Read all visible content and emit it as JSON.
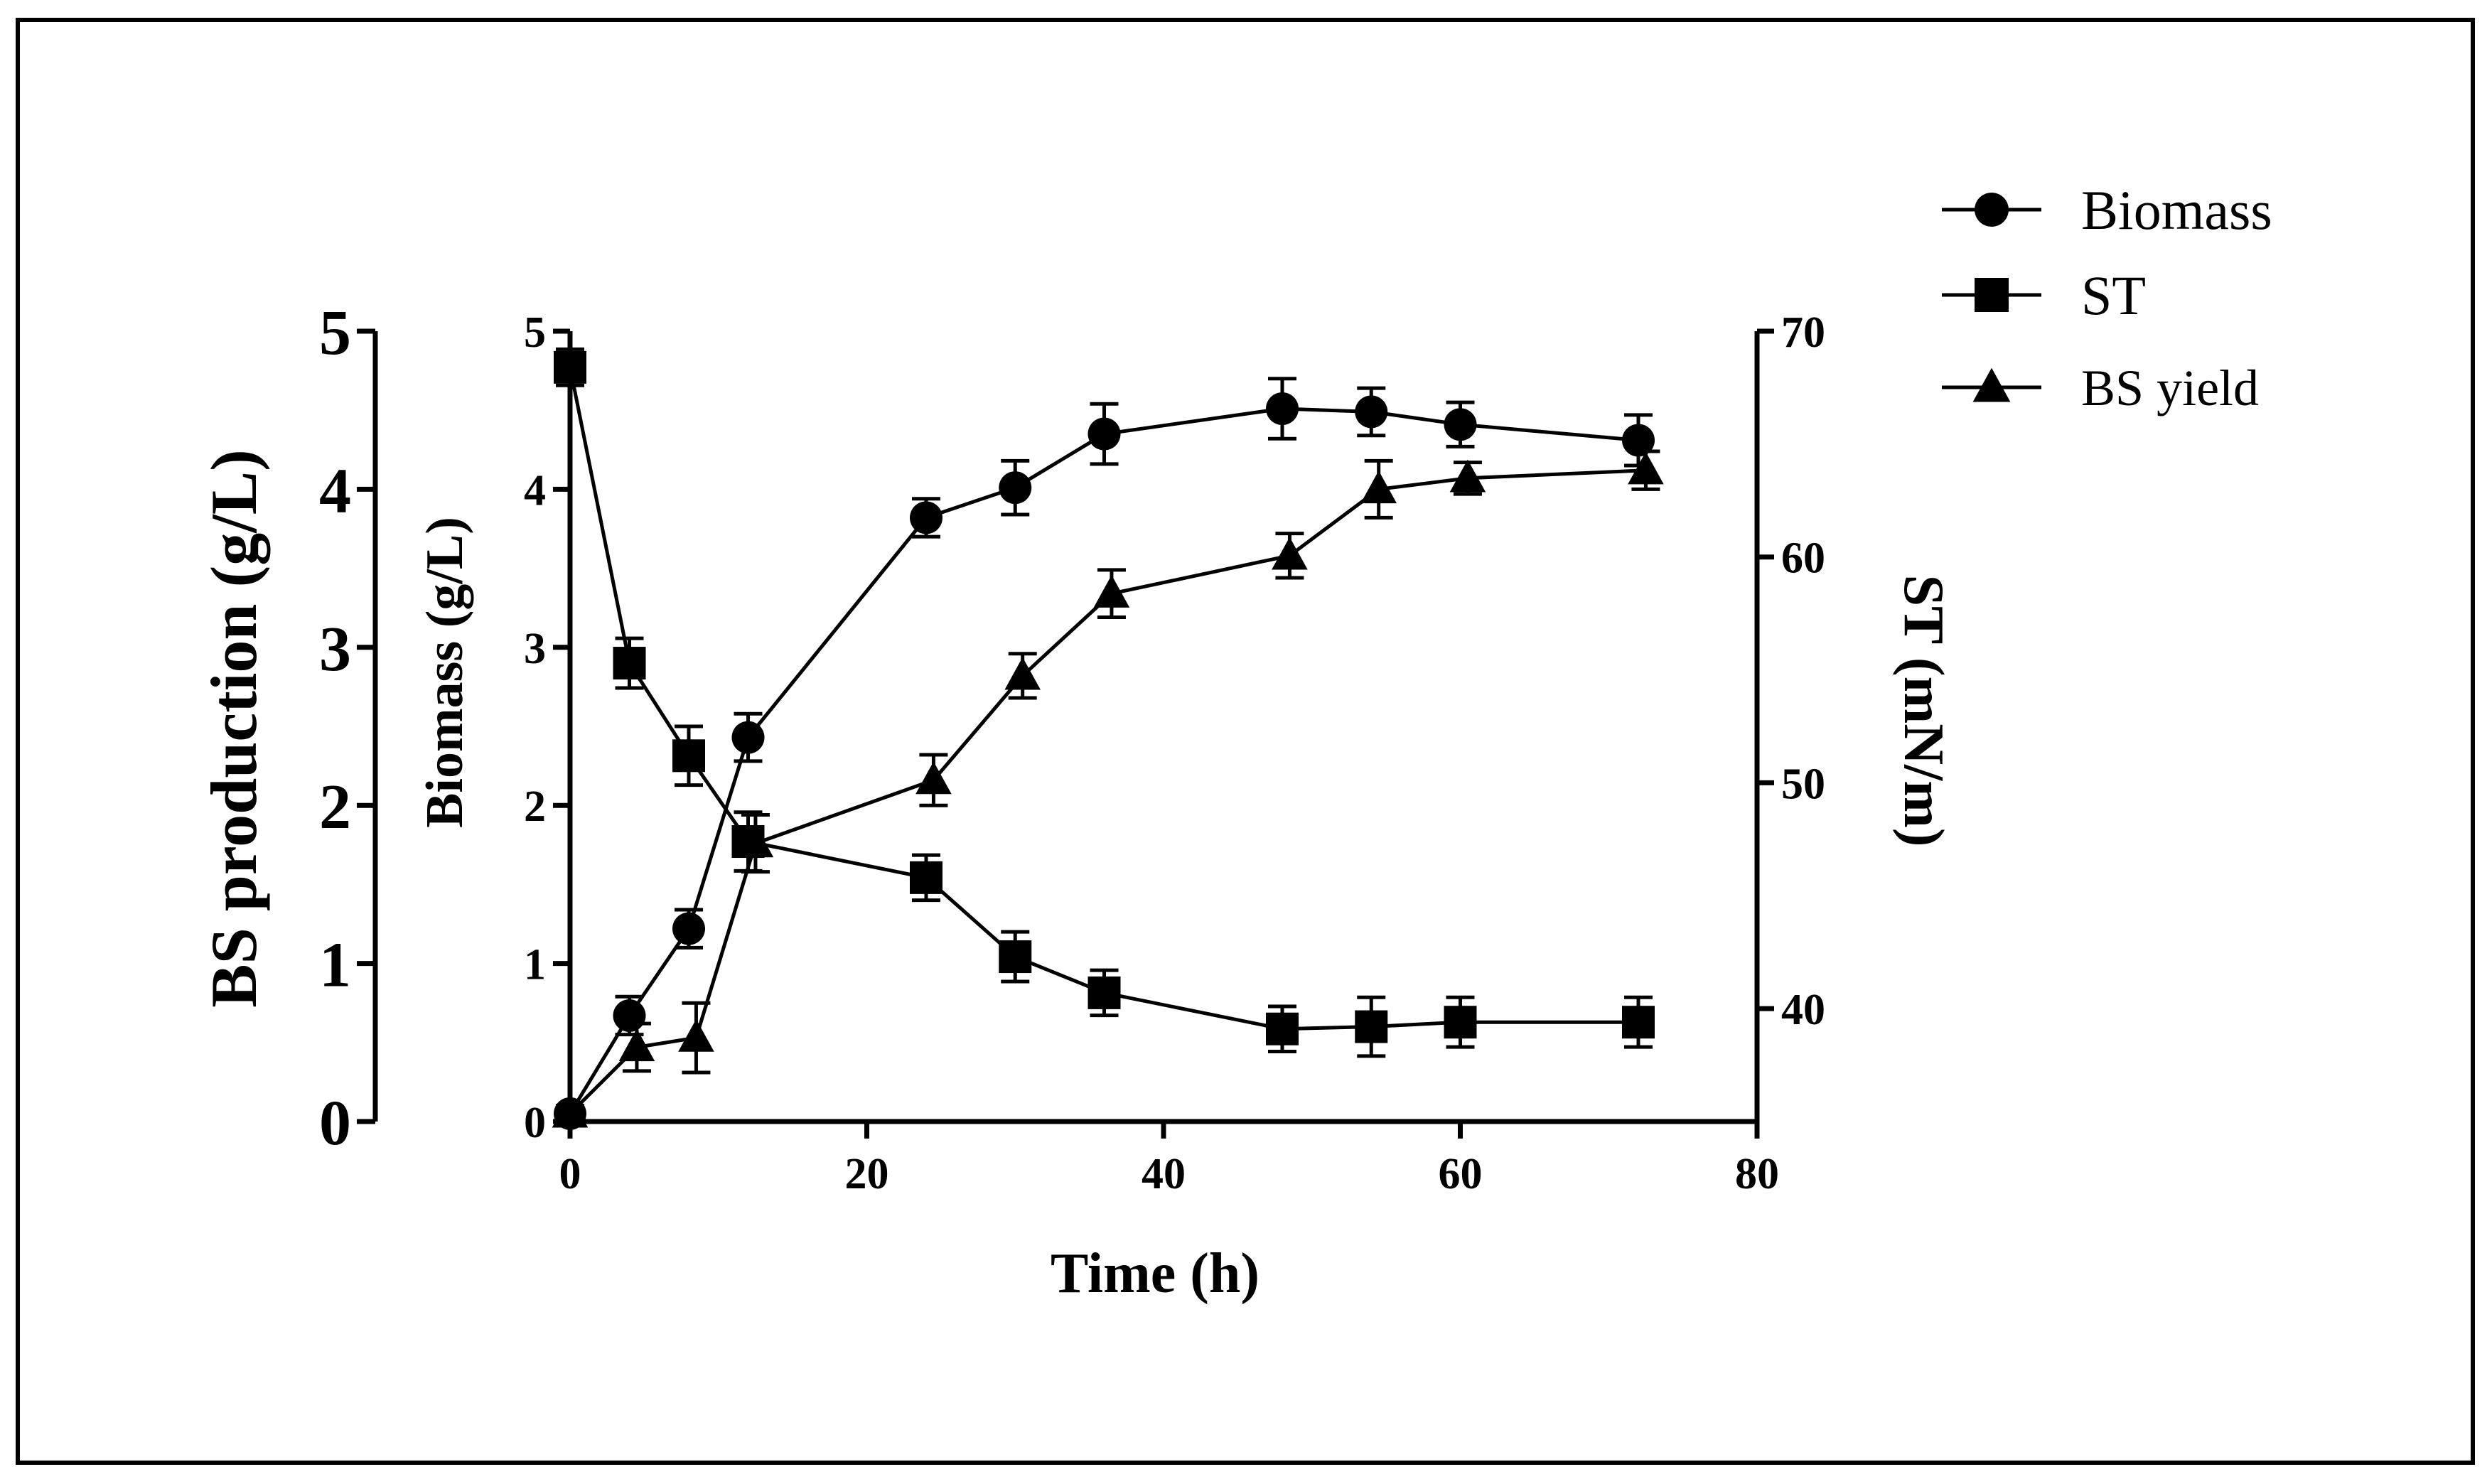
{
  "chart_data": {
    "type": "line",
    "title": "",
    "xlabel": "Time (h)",
    "ylabel": "Biomass (g/L)",
    "ylabel_outer": "BS production (g/L)",
    "ylabel_right": "ST (mN/m)",
    "xlim": [
      0,
      80
    ],
    "ylim": [
      0,
      5
    ],
    "ylim_right": [
      35,
      70
    ],
    "xticks": [
      "0",
      "20",
      "40",
      "60",
      "80"
    ],
    "yticks": [
      "0",
      "1",
      "2",
      "3",
      "4",
      "5"
    ],
    "yticks_outer": [
      "0",
      "1",
      "2",
      "3",
      "4",
      "5"
    ],
    "yticks_right": [
      "40",
      "50",
      "60",
      "70"
    ],
    "grid": false,
    "legend_position": "top-right",
    "series": [
      {
        "name": "Biomass",
        "marker": "circle",
        "axis": "left",
        "x": [
          0,
          4,
          8,
          12,
          24,
          30,
          36,
          48,
          54,
          60,
          72
        ],
        "values": [
          0.05,
          0.67,
          1.22,
          2.43,
          3.82,
          4.01,
          4.35,
          4.51,
          4.49,
          4.41,
          4.31
        ],
        "errors": [
          0.05,
          0.12,
          0.12,
          0.15,
          0.12,
          0.17,
          0.19,
          0.19,
          0.15,
          0.14,
          0.16
        ]
      },
      {
        "name": "ST",
        "marker": "square",
        "axis": "right",
        "x": [
          0,
          4,
          8,
          12,
          24,
          30,
          36,
          48,
          54,
          60,
          72
        ],
        "values": [
          68.4,
          55.3,
          51.2,
          47.4,
          45.8,
          42.3,
          40.7,
          39.1,
          39.2,
          39.4,
          39.4
        ],
        "errors": [
          0.8,
          1.1,
          1.3,
          1.3,
          1.0,
          1.1,
          1.0,
          1.0,
          1.3,
          1.1,
          1.1
        ]
      },
      {
        "name": "BS yield",
        "marker": "triangle",
        "axis": "left",
        "x": [
          0,
          4.5,
          8.5,
          12.5,
          24.5,
          30.5,
          36.5,
          48.5,
          54.5,
          60.5,
          72.5
        ],
        "values": [
          0.05,
          0.47,
          0.53,
          1.76,
          2.16,
          2.82,
          3.34,
          3.58,
          4.0,
          4.07,
          4.12
        ],
        "errors": [
          0.05,
          0.15,
          0.22,
          0.18,
          0.16,
          0.14,
          0.15,
          0.14,
          0.18,
          0.1,
          0.12
        ]
      }
    ]
  }
}
